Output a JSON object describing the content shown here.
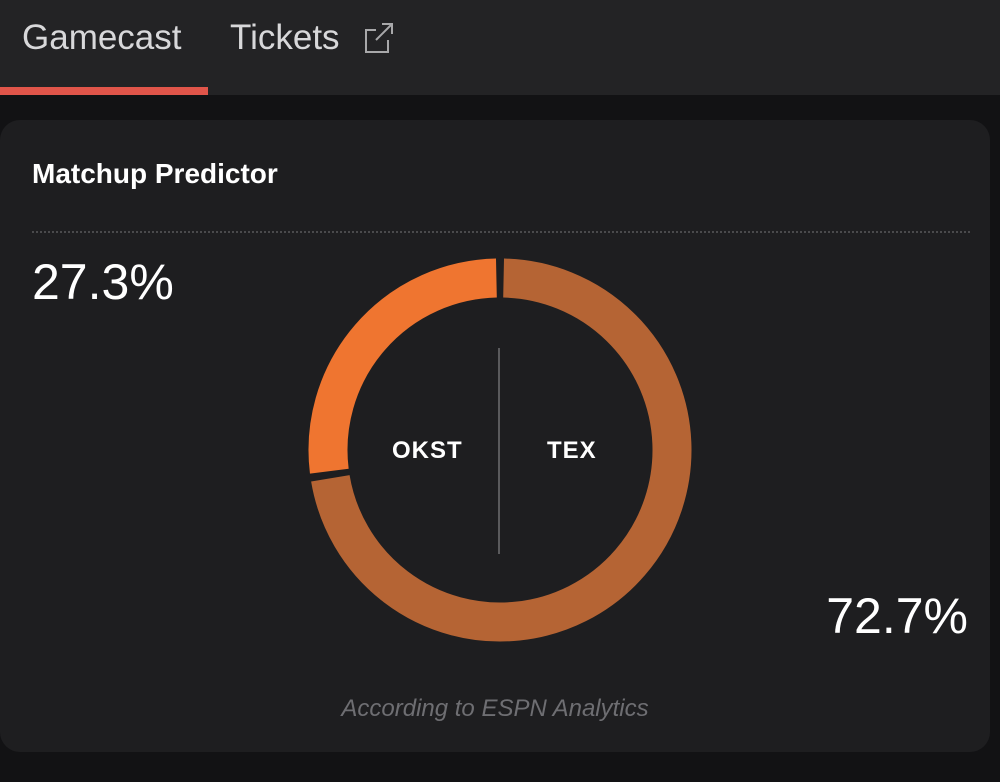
{
  "tabs": [
    {
      "label": "Gamecast",
      "active": true
    },
    {
      "label": "Tickets",
      "icon": "external-link-icon"
    }
  ],
  "colors": {
    "accent": "#e0554a",
    "okst": "#ef7530",
    "tex": "#b56434"
  },
  "card": {
    "title": "Matchup Predictor",
    "footer": "According to ESPN Analytics"
  },
  "chart_data": {
    "type": "pie",
    "variant": "donut",
    "title": "Matchup Predictor",
    "categories": [
      "OKST",
      "TEX"
    ],
    "values": [
      27.3,
      72.7
    ],
    "labels": [
      "27.3%",
      "72.7%"
    ]
  }
}
